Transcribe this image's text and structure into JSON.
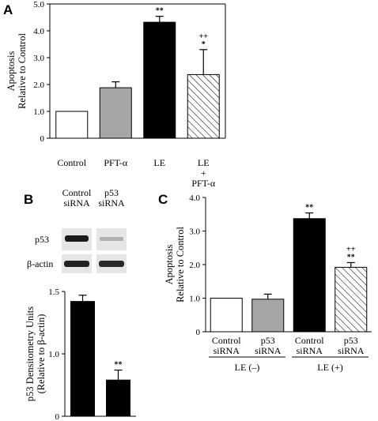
{
  "chart_data": [
    {
      "panel": "A",
      "type": "bar",
      "categories": [
        "Control",
        "PFT-α",
        "LE",
        "LE\n+\nPFT-α"
      ],
      "values": [
        1.0,
        1.88,
        4.32,
        2.37
      ],
      "errors": [
        0,
        0.22,
        0.22,
        0.93
      ],
      "significance": [
        "",
        "",
        "**",
        "++\n*"
      ],
      "fills": [
        "white",
        "gray",
        "black",
        "hatched"
      ],
      "ylabel": "Apoptosis\nRelative to Control",
      "yticks": [
        "0",
        "1.0",
        "2.0",
        "3.0",
        "4.0",
        "5.0"
      ],
      "ylim": [
        0,
        5
      ]
    },
    {
      "panel": "B",
      "type": "bar",
      "categories": [
        "Control siRNA",
        "p53 siRNA"
      ],
      "values": [
        1.42,
        0.79
      ],
      "errors": [
        0.05,
        0.08
      ],
      "significance": [
        "",
        "**"
      ],
      "fills": [
        "black",
        "black"
      ],
      "ylabel": "p53 Densitometry Units\n(Relative to β-actin)",
      "yticks": [
        "0",
        "1.0",
        "1.5"
      ],
      "ylim": [
        0.5,
        1.5
      ],
      "blot": {
        "columns": [
          "Control\nsiRNA",
          "p53\nsiRNA"
        ],
        "rows": [
          "p53",
          "β-actin"
        ]
      }
    },
    {
      "panel": "C",
      "type": "bar",
      "categories": [
        "Control\nsiRNA",
        "p53\nsiRNA",
        "Control\nsiRNA",
        "p53\nsiRNA"
      ],
      "groups": [
        {
          "label": "LE (–)",
          "members": [
            0,
            1
          ]
        },
        {
          "label": "LE (+)",
          "members": [
            2,
            3
          ]
        }
      ],
      "values": [
        1.0,
        0.97,
        3.37,
        1.92
      ],
      "errors": [
        0,
        0.15,
        0.17,
        0.14
      ],
      "significance": [
        "",
        "",
        "**",
        "++\n**"
      ],
      "fills": [
        "white",
        "gray",
        "black",
        "hatched"
      ],
      "ylabel": "Apoptosis\nRelative to Control",
      "yticks": [
        "0",
        "1.0",
        "2.0",
        "3.0",
        "4.0"
      ],
      "ylim": [
        0,
        4
      ]
    }
  ],
  "colors": {
    "black_bar": "#000000",
    "gray_bar": "#a6a6a6",
    "white_bar": "#ffffff",
    "axis": "#000000"
  }
}
